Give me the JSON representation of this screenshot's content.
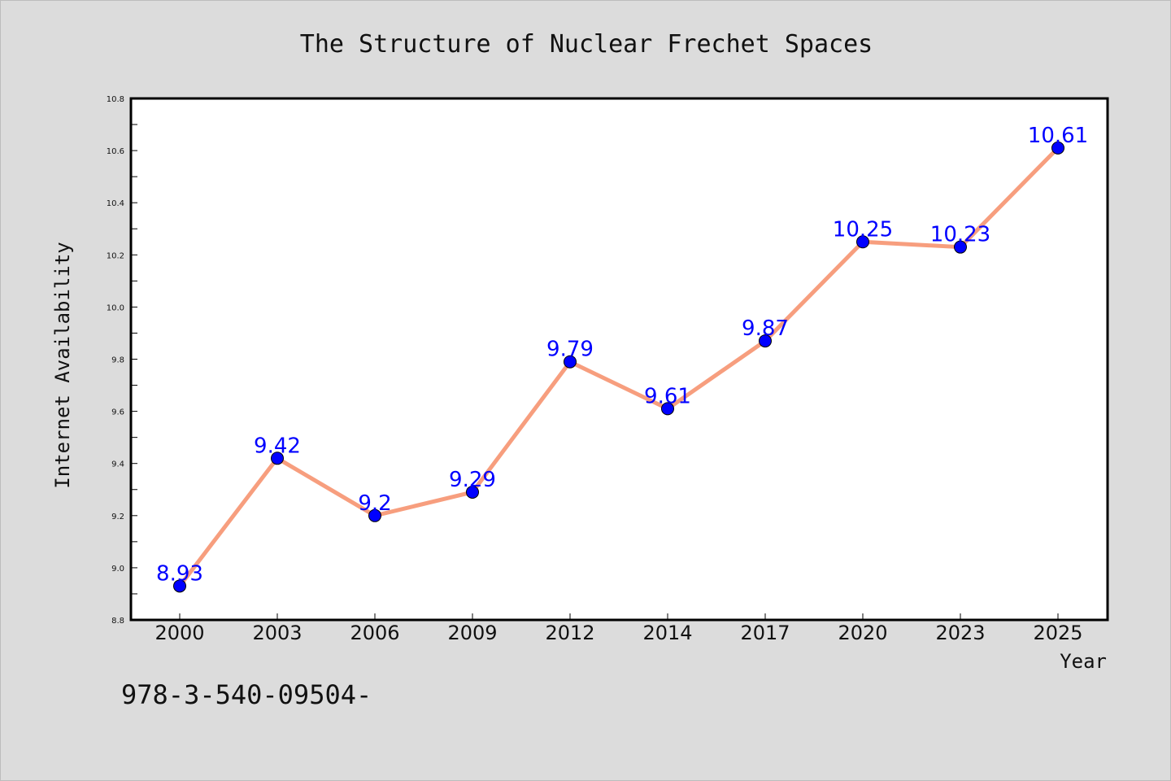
{
  "chart_data": {
    "type": "line",
    "title": "The Structure of Nuclear Frechet Spaces",
    "xlabel": "Year",
    "ylabel": "Internet Availability",
    "categories": [
      "2000",
      "2003",
      "2006",
      "2009",
      "2012",
      "2014",
      "2017",
      "2020",
      "2023",
      "2025"
    ],
    "series": [
      {
        "values": [
          8.93,
          9.42,
          9.2,
          9.29,
          9.79,
          9.61,
          9.87,
          10.25,
          10.23,
          10.61
        ],
        "data_labels": [
          "8.93",
          "9.42",
          "9.2",
          "9.29",
          "9.79",
          "9.61",
          "9.87",
          "10.25",
          "10.23",
          "10.61"
        ],
        "line_color": "#f79e7e",
        "marker_color": "#0000ff"
      }
    ],
    "ylim": [
      8.8,
      10.8
    ],
    "yticks": [
      "8.8",
      "9.0",
      "9.2",
      "9.4",
      "9.6",
      "9.8",
      "10.0",
      "10.2",
      "10.4",
      "10.6",
      "10.8"
    ],
    "grid": false,
    "legend": "none"
  },
  "footer": {
    "text": "978-3-540-09504-"
  },
  "colors": {
    "background": "#dcdcdc",
    "plot_background": "#ffffff",
    "line": "#f79e7e",
    "marker": "#0000ff",
    "data_label": "#0000ff"
  }
}
